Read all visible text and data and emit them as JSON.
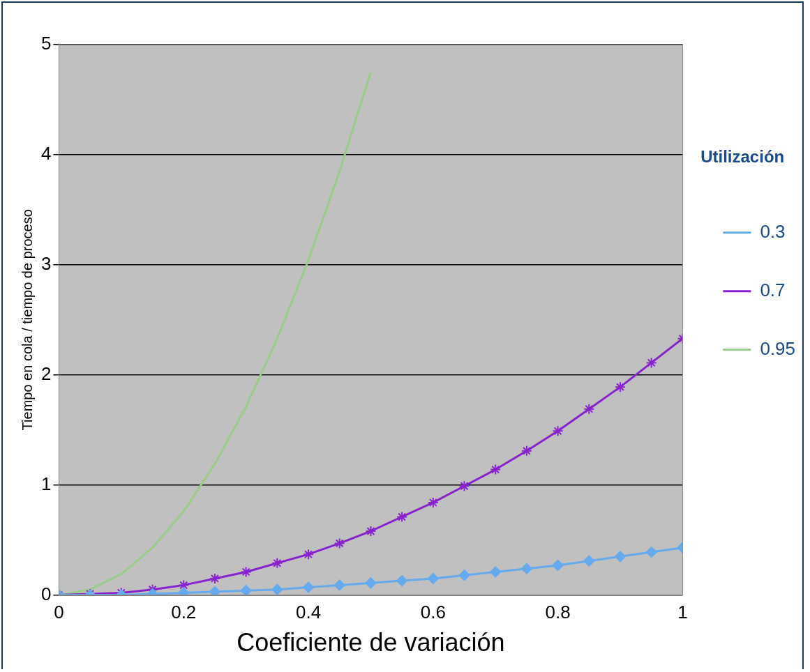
{
  "chart_data": {
    "type": "line",
    "xlabel": "Coeficiente de variación",
    "ylabel": "Tiempo en cola / tiempo de proceso",
    "legend_title": "Utilización",
    "x": [
      0,
      0.05,
      0.1,
      0.15,
      0.2,
      0.25,
      0.3,
      0.35,
      0.4,
      0.45,
      0.5,
      0.55,
      0.6,
      0.65,
      0.7,
      0.75,
      0.8,
      0.85,
      0.9,
      0.95,
      1
    ],
    "series": [
      {
        "name": "0.3",
        "color": "#66aaee",
        "marker": "diamond",
        "values": [
          0,
          0,
          0,
          0.01,
          0.02,
          0.03,
          0.04,
          0.05,
          0.07,
          0.09,
          0.11,
          0.13,
          0.15,
          0.18,
          0.21,
          0.24,
          0.27,
          0.31,
          0.35,
          0.39,
          0.43
        ]
      },
      {
        "name": "0.7",
        "color": "#8822cc",
        "marker": "cross",
        "values": [
          0,
          0.01,
          0.02,
          0.05,
          0.09,
          0.15,
          0.21,
          0.29,
          0.37,
          0.47,
          0.58,
          0.71,
          0.84,
          0.99,
          1.14,
          1.31,
          1.49,
          1.69,
          1.89,
          2.11,
          2.33
        ]
      },
      {
        "name": "0.95",
        "color": "#99cc88",
        "marker": "none",
        "values": [
          0,
          0.05,
          0.19,
          0.43,
          0.76,
          1.19,
          1.71,
          2.33,
          3.04,
          3.85,
          4.75,
          null,
          null,
          null,
          null,
          null,
          null,
          null,
          null,
          null,
          null
        ]
      }
    ],
    "xlim": [
      0,
      1
    ],
    "xticks": [
      0,
      0.2,
      0.4,
      0.6,
      0.8,
      1
    ],
    "ylim": [
      0,
      5
    ],
    "yticks": [
      0,
      1,
      2,
      3,
      4,
      5
    ],
    "grid": "y",
    "legend": "right"
  }
}
